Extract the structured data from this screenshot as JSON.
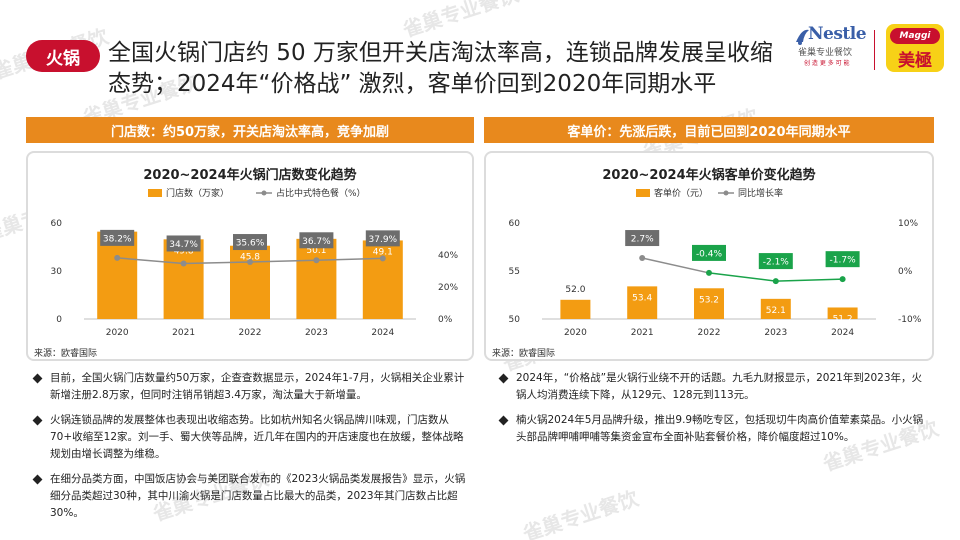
{
  "watermark": "雀巢专业餐饮",
  "tag": "火锅",
  "title": "全国火锅门店约 50 万家但开关店淘汰率高，连锁品牌发展呈收缩态势；2024年“价格战” 激烈，客单价回到2020年同期水平",
  "logos": {
    "nestle_brand": "Nestle",
    "nestle_sub": "雀巢专业餐饮",
    "nestle_slogan": "创 造 更 多 可 能",
    "maggi_brand": "Maggi",
    "maggi_cn": "美極"
  },
  "left": {
    "header": "门店数：约50万家，开关店淘汰率高，竞争加剧",
    "source": "来源：欧睿国际",
    "bullets": [
      "目前，全国火锅门店数量约50万家，企查查数据显示，2024年1-7月，火锅相关企业累计新增注册2.8万家，但同时注销吊销超3.4万家，淘汰量大于新增量。",
      "火锅连锁品牌的发展整体也表现出收缩态势。比如杭州知名火锅品牌川味观，门店数从70+收缩至12家。刘一手、蜀大侠等品牌，近几年在国内的开店速度也在放缓，整体战略规划由增长调整为维稳。",
      "在细分品类方面，中国饭店协会与美团联合发布的《2023火锅品类发展报告》显示，火锅细分品类超过30种，其中川渝火锅是门店数量占比最大的品类，2023年其门店数占比超30%。"
    ]
  },
  "right": {
    "header": "客单价：先涨后跌，目前已回到2020年同期水平",
    "source": "来源：欧睿国际",
    "bullets": [
      "2024年，“价格战”是火锅行业绕不开的话题。九毛九财报显示，2021年到2023年，火锅人均消费连续下降，从129元、128元到113元。",
      "楠火锅2024年5月品牌升级，推出9.9畅吃专区，包括现切牛肉高价值荤素菜品。小火锅头部品牌呷哺呷哺等集资金宣布全面补贴套餐价格，降价幅度超过10%。"
    ]
  },
  "colors": {
    "bar": "#f39c12",
    "line_gray": "#8c8c8c",
    "line_green": "#1aa34a",
    "header": "#e8891d",
    "label_box": "#6d6d6d",
    "label_box_green": "#1aa34a"
  },
  "chart_data": [
    {
      "type": "bar",
      "title": "2020~2024年火锅门店数变化趋势",
      "categories": [
        "2020",
        "2021",
        "2022",
        "2023",
        "2024"
      ],
      "series": [
        {
          "name": "门店数（万家）",
          "axis": "left",
          "values": [
            54.6,
            49.8,
            45.8,
            50.1,
            49.1
          ]
        },
        {
          "name": "占比中式特色餐（%）",
          "axis": "right",
          "type": "line",
          "values": [
            38.2,
            34.7,
            35.6,
            36.7,
            37.9
          ],
          "labels": [
            "38.2%",
            "34.7%",
            "35.6%",
            "36.7%",
            "37.9%"
          ]
        }
      ],
      "ylim": [
        0,
        60
      ],
      "yticks": [
        "0",
        "30",
        "60"
      ],
      "y2lim": [
        0,
        60
      ],
      "y2ticks": [
        "0%",
        "20%",
        "40%"
      ],
      "legend": "top"
    },
    {
      "type": "bar",
      "title": "2020~2024年火锅客单价变化趋势",
      "categories": [
        "2020",
        "2021",
        "2022",
        "2023",
        "2024"
      ],
      "series": [
        {
          "name": "客单价（元）",
          "axis": "left",
          "values": [
            52.0,
            53.4,
            53.2,
            52.1,
            51.2
          ],
          "labels": [
            "52.0",
            "53.4",
            "53.2",
            "52.1",
            "51.2"
          ]
        },
        {
          "name": "同比增长率",
          "axis": "right",
          "type": "line",
          "values": [
            null,
            2.7,
            -0.4,
            -2.1,
            -1.7
          ],
          "labels": [
            "",
            "2.7%",
            "-0.4%",
            "-2.1%",
            "-1.7%"
          ]
        }
      ],
      "ylim": [
        50,
        60
      ],
      "yticks": [
        "50",
        "55",
        "60"
      ],
      "y2lim": [
        -10,
        10
      ],
      "y2ticks": [
        "-10%",
        "0%",
        "10%"
      ],
      "legend": "top"
    }
  ]
}
